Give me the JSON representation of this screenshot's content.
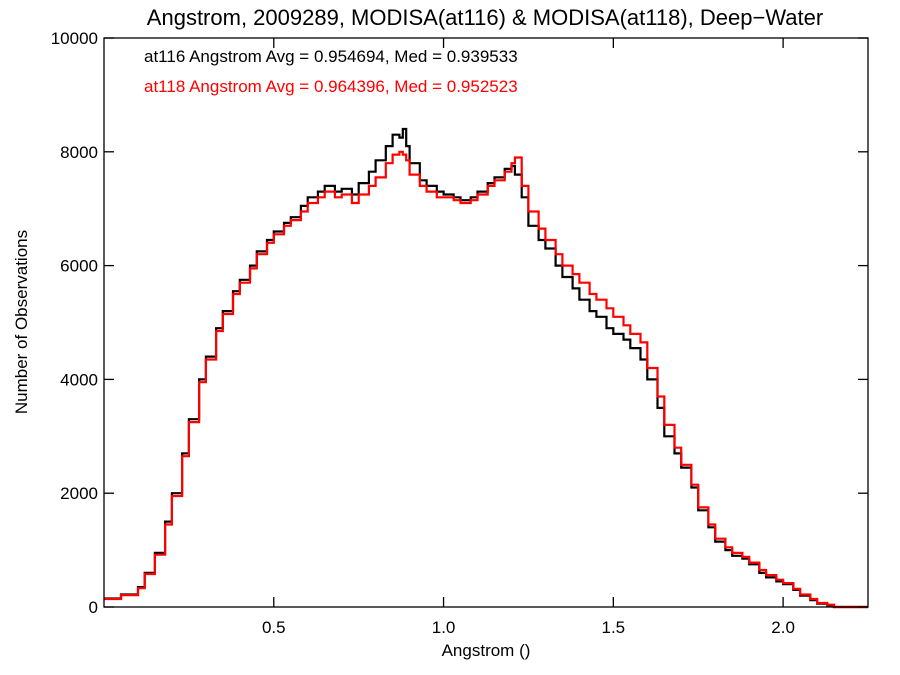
{
  "chart_data": {
    "type": "line",
    "title": "Angstrom, 2009289, MODISA(at116) & MODISA(at118), Deep−Water",
    "xlabel": "Angstrom ()",
    "ylabel": "Number of Observations",
    "xlim": [
      0.0,
      2.25
    ],
    "ylim": [
      0,
      10000
    ],
    "xticks": [
      0.5,
      1.0,
      1.5,
      2.0
    ],
    "xtick_labels": [
      "0.5",
      "1.0",
      "1.5",
      "2.0"
    ],
    "yticks": [
      0,
      2000,
      4000,
      6000,
      8000,
      10000
    ],
    "ytick_labels": [
      "0",
      "2000",
      "4000",
      "6000",
      "8000",
      "10000"
    ],
    "grid": false,
    "legend_position": "top-left",
    "legend": [
      {
        "text": "at116 Angstrom Avg = 0.954694, Med = 0.939533",
        "color": "#000000"
      },
      {
        "text": "at118 Angstrom Avg = 0.964396, Med = 0.952523",
        "color": "#ff0000"
      }
    ],
    "step_histogram": true,
    "series": [
      {
        "color": "#000000",
        "x": [
          0.0,
          0.05,
          0.1,
          0.12,
          0.15,
          0.18,
          0.2,
          0.23,
          0.25,
          0.28,
          0.3,
          0.33,
          0.35,
          0.38,
          0.4,
          0.43,
          0.45,
          0.48,
          0.5,
          0.53,
          0.55,
          0.58,
          0.6,
          0.63,
          0.65,
          0.68,
          0.7,
          0.73,
          0.75,
          0.78,
          0.8,
          0.83,
          0.85,
          0.87,
          0.88,
          0.89,
          0.9,
          0.93,
          0.95,
          0.98,
          1.0,
          1.03,
          1.05,
          1.08,
          1.1,
          1.13,
          1.15,
          1.18,
          1.2,
          1.21,
          1.23,
          1.25,
          1.28,
          1.3,
          1.33,
          1.35,
          1.38,
          1.4,
          1.43,
          1.45,
          1.48,
          1.5,
          1.53,
          1.55,
          1.58,
          1.6,
          1.63,
          1.65,
          1.68,
          1.7,
          1.73,
          1.75,
          1.78,
          1.8,
          1.83,
          1.85,
          1.88,
          1.9,
          1.93,
          1.95,
          1.98,
          2.0,
          2.03,
          2.05,
          2.08,
          2.1,
          2.13,
          2.15,
          2.18,
          2.25
        ],
        "y": [
          150,
          220,
          350,
          600,
          950,
          1500,
          2000,
          2700,
          3300,
          4000,
          4400,
          4900,
          5200,
          5550,
          5750,
          6000,
          6250,
          6450,
          6600,
          6750,
          6850,
          7050,
          7200,
          7300,
          7400,
          7300,
          7350,
          7250,
          7450,
          7650,
          7850,
          8100,
          8300,
          8250,
          8400,
          8100,
          7800,
          7500,
          7400,
          7300,
          7250,
          7200,
          7150,
          7200,
          7300,
          7450,
          7550,
          7700,
          7750,
          7600,
          7200,
          6700,
          6450,
          6300,
          6000,
          5800,
          5600,
          5400,
          5200,
          5100,
          4900,
          4800,
          4700,
          4550,
          4350,
          4000,
          3500,
          3000,
          2700,
          2450,
          2100,
          1700,
          1400,
          1150,
          1000,
          900,
          850,
          750,
          600,
          520,
          450,
          400,
          300,
          200,
          120,
          60,
          30,
          0,
          0,
          0
        ]
      },
      {
        "color": "#ff0000",
        "x": [
          0.0,
          0.05,
          0.1,
          0.12,
          0.15,
          0.18,
          0.2,
          0.23,
          0.25,
          0.28,
          0.3,
          0.33,
          0.35,
          0.38,
          0.4,
          0.43,
          0.45,
          0.48,
          0.5,
          0.53,
          0.55,
          0.58,
          0.6,
          0.63,
          0.65,
          0.68,
          0.7,
          0.73,
          0.75,
          0.78,
          0.8,
          0.83,
          0.85,
          0.87,
          0.88,
          0.89,
          0.9,
          0.93,
          0.95,
          0.98,
          1.0,
          1.03,
          1.05,
          1.08,
          1.1,
          1.13,
          1.15,
          1.18,
          1.2,
          1.21,
          1.23,
          1.25,
          1.28,
          1.3,
          1.33,
          1.35,
          1.38,
          1.4,
          1.43,
          1.45,
          1.48,
          1.5,
          1.53,
          1.55,
          1.58,
          1.6,
          1.63,
          1.65,
          1.68,
          1.7,
          1.73,
          1.75,
          1.78,
          1.8,
          1.83,
          1.85,
          1.88,
          1.9,
          1.93,
          1.95,
          1.98,
          2.0,
          2.03,
          2.05,
          2.08,
          2.1,
          2.13,
          2.15,
          2.18,
          2.25
        ],
        "y": [
          140,
          210,
          330,
          580,
          920,
          1450,
          1950,
          2650,
          3250,
          3950,
          4350,
          4850,
          5150,
          5500,
          5700,
          5950,
          6200,
          6400,
          6550,
          6700,
          6800,
          6950,
          7100,
          7200,
          7300,
          7200,
          7250,
          7100,
          7250,
          7400,
          7550,
          7800,
          7950,
          8000,
          7950,
          7850,
          7600,
          7400,
          7300,
          7200,
          7200,
          7150,
          7100,
          7150,
          7250,
          7400,
          7500,
          7650,
          7800,
          7900,
          7400,
          6950,
          6650,
          6450,
          6200,
          6000,
          5850,
          5700,
          5500,
          5400,
          5250,
          5100,
          4950,
          4800,
          4650,
          4200,
          3700,
          3200,
          2800,
          2500,
          2150,
          1750,
          1450,
          1200,
          1050,
          950,
          880,
          780,
          650,
          560,
          480,
          420,
          320,
          220,
          140,
          70,
          40,
          0,
          0,
          0
        ]
      }
    ]
  }
}
